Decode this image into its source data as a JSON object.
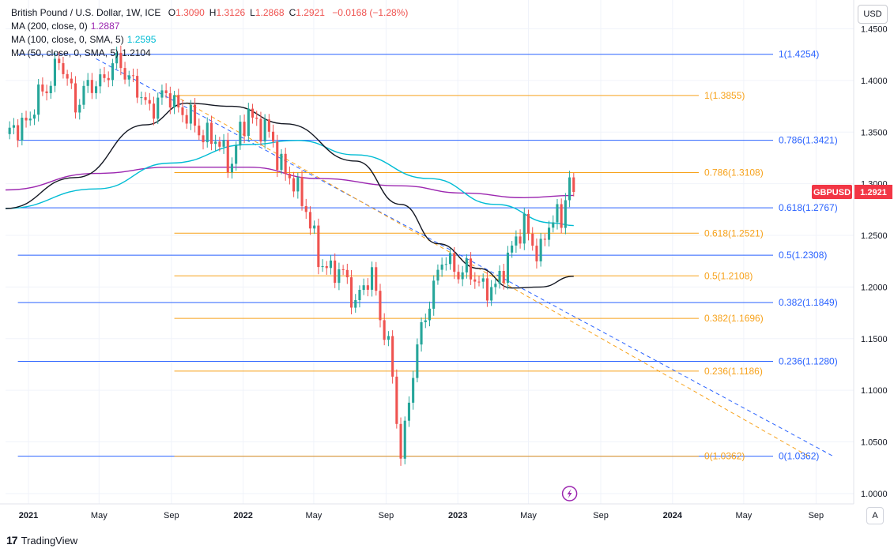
{
  "header": {
    "symbol": "British Pound / U.S. Dollar, 1W, ICE",
    "ohlc": [
      {
        "label": "O",
        "value": "1.3090"
      },
      {
        "label": "H",
        "value": "1.3126"
      },
      {
        "label": "L",
        "value": "1.2868"
      },
      {
        "label": "C",
        "value": "1.2921"
      }
    ],
    "change": "−0.0168 (−1.28%)"
  },
  "indicators": [
    {
      "label": "MA (200, close, 0)",
      "value": "1.2887",
      "color": "#9c27b0"
    },
    {
      "label": "MA (100, close, 0, SMA, 5)",
      "value": "1.2595",
      "color": "#00bcd4"
    },
    {
      "label": "MA (50, close, 0, SMA, 5)",
      "value": "1.2104",
      "color": "#131722"
    }
  ],
  "currency_button": "USD",
  "auto_button": "A",
  "price_tag": {
    "symbol": "GBPUSD",
    "value": "1.2921"
  },
  "brand": {
    "logo": "17",
    "name": "TradingView"
  },
  "colors": {
    "up": "#26a69a",
    "down": "#ef5350",
    "fib_blue": "#2962ff",
    "fib_orange": "#f7a21b",
    "grid": "#f0f3fa"
  },
  "chart_data": {
    "type": "candlestick",
    "xlabels": [
      "2021",
      "May",
      "Sep",
      "2022",
      "May",
      "Sep",
      "2023",
      "May",
      "Sep",
      "2024",
      "May",
      "Sep"
    ],
    "yticks": [
      "1.4500",
      "1.4000",
      "1.3500",
      "1.3000",
      "1.2500",
      "1.2000",
      "1.1500",
      "1.1000",
      "1.0500",
      "1.0000"
    ],
    "ylim": [
      0.99,
      1.455
    ],
    "xlim": [
      "2020-11-23",
      "2024-11-04"
    ],
    "fib_blue": [
      {
        "ratio": "1",
        "price": 1.4254,
        "label": "1(1.4254)"
      },
      {
        "ratio": "0.786",
        "price": 1.3421,
        "label": "0.786(1.3421)"
      },
      {
        "ratio": "0.618",
        "price": 1.2767,
        "label": "0.618(1.2767)"
      },
      {
        "ratio": "0.5",
        "price": 1.2308,
        "label": "0.5(1.2308)"
      },
      {
        "ratio": "0.382",
        "price": 1.1849,
        "label": "0.382(1.1849)"
      },
      {
        "ratio": "0.236",
        "price": 1.128,
        "label": "0.236(1.1280)"
      },
      {
        "ratio": "0",
        "price": 1.0362,
        "label": "0(1.0362)"
      }
    ],
    "fib_orange": [
      {
        "ratio": "1",
        "price": 1.3855,
        "label": "1(1.3855)"
      },
      {
        "ratio": "0.786",
        "price": 1.3108,
        "label": "0.786(1.3108)"
      },
      {
        "ratio": "0.618",
        "price": 1.2521,
        "label": "0.618(1.2521)"
      },
      {
        "ratio": "0.5",
        "price": 1.2108,
        "label": "0.5(1.2108)"
      },
      {
        "ratio": "0.382",
        "price": 1.1696,
        "label": "0.382(1.1696)"
      },
      {
        "ratio": "0.236",
        "price": 1.1186,
        "label": "0.236(1.1186)"
      },
      {
        "ratio": "0",
        "price": 1.0362,
        "label": "0(1.0362)"
      }
    ],
    "trendlines": [
      {
        "color": "#2962ff",
        "from": [
          "2021-04-26",
          1.421
        ],
        "to": [
          "2024-09-30",
          1.0362
        ]
      },
      {
        "color": "#f7a21b",
        "from": [
          "2021-09-06",
          1.3855
        ],
        "to": [
          "2024-08-19",
          1.0362
        ]
      }
    ],
    "price_path": [
      [
        "2020-11-23",
        1.343
      ],
      [
        "2021-01-04",
        1.366
      ],
      [
        "2021-02-22",
        1.418
      ],
      [
        "2021-03-22",
        1.38
      ],
      [
        "2021-04-26",
        1.398
      ],
      [
        "2021-06-07",
        1.418
      ],
      [
        "2021-07-19",
        1.375
      ],
      [
        "2021-08-30",
        1.385
      ],
      [
        "2021-10-04",
        1.36
      ],
      [
        "2021-11-15",
        1.34
      ],
      [
        "2021-12-13",
        1.322
      ],
      [
        "2022-01-10",
        1.37
      ],
      [
        "2022-02-21",
        1.34
      ],
      [
        "2022-03-14",
        1.31
      ],
      [
        "2022-04-18",
        1.28
      ],
      [
        "2022-05-09",
        1.224
      ],
      [
        "2022-06-13",
        1.215
      ],
      [
        "2022-07-11",
        1.188
      ],
      [
        "2022-08-08",
        1.21
      ],
      [
        "2022-09-05",
        1.142
      ],
      [
        "2022-09-26",
        1.037
      ],
      [
        "2022-10-17",
        1.12
      ],
      [
        "2022-11-14",
        1.19
      ],
      [
        "2022-12-05",
        1.225
      ],
      [
        "2023-01-09",
        1.216
      ],
      [
        "2023-02-20",
        1.2
      ],
      [
        "2023-03-06",
        1.195
      ],
      [
        "2023-03-27",
        1.232
      ],
      [
        "2023-04-24",
        1.258
      ],
      [
        "2023-05-22",
        1.232
      ],
      [
        "2023-06-12",
        1.27
      ],
      [
        "2023-06-26",
        1.268
      ],
      [
        "2023-07-10",
        1.305
      ],
      [
        "2023-07-17",
        1.2921
      ]
    ],
    "series": [
      {
        "name": "MA (200, close, 0)",
        "color": "#9c27b0",
        "points": [
          [
            "2020-11-23",
            1.294
          ],
          [
            "2021-04-26",
            1.31
          ],
          [
            "2021-08-30",
            1.316
          ],
          [
            "2022-01-10",
            1.316
          ],
          [
            "2022-05-09",
            1.305
          ],
          [
            "2022-09-26",
            1.298
          ],
          [
            "2023-01-09",
            1.291
          ],
          [
            "2023-04-24",
            1.2865
          ],
          [
            "2023-07-17",
            1.2887
          ]
        ]
      },
      {
        "name": "MA (100, close, 0, SMA, 5)",
        "color": "#00bcd4",
        "points": [
          [
            "2020-11-23",
            1.276
          ],
          [
            "2021-04-26",
            1.295
          ],
          [
            "2021-08-30",
            1.32
          ],
          [
            "2022-01-10",
            1.338
          ],
          [
            "2022-04-04",
            1.342
          ],
          [
            "2022-07-11",
            1.328
          ],
          [
            "2022-11-14",
            1.305
          ],
          [
            "2023-03-06",
            1.28
          ],
          [
            "2023-06-12",
            1.262
          ],
          [
            "2023-07-17",
            1.2595
          ]
        ]
      },
      {
        "name": "MA (50, close, 0, SMA, 5)",
        "color": "#131722",
        "points": [
          [
            "2020-11-23",
            1.276
          ],
          [
            "2021-03-22",
            1.306
          ],
          [
            "2021-07-19",
            1.357
          ],
          [
            "2021-09-27",
            1.378
          ],
          [
            "2021-12-13",
            1.375
          ],
          [
            "2022-03-14",
            1.358
          ],
          [
            "2022-07-11",
            1.322
          ],
          [
            "2022-09-26",
            1.28
          ],
          [
            "2022-11-28",
            1.242
          ],
          [
            "2023-02-06",
            1.218
          ],
          [
            "2023-04-03",
            1.199
          ],
          [
            "2023-05-22",
            1.2
          ],
          [
            "2023-07-17",
            1.2104
          ]
        ]
      }
    ],
    "grid": true
  }
}
